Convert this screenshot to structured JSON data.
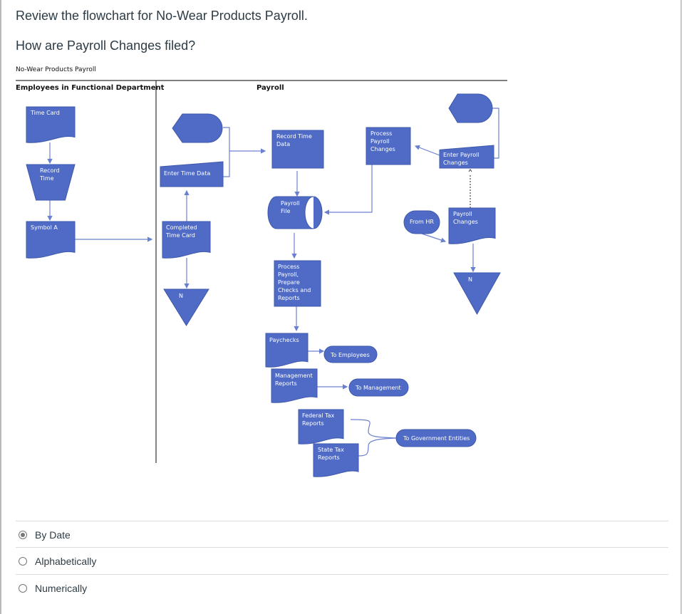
{
  "question": {
    "line1": "Review the flowchart for No-Wear Products Payroll.",
    "line2": "How are Payroll Changes filed?"
  },
  "flowchart": {
    "title": "No-Wear Products Payroll",
    "lanes": [
      "Employees in Functional Department",
      "Payroll"
    ],
    "shapes": {
      "time_card": [
        "Time Card"
      ],
      "record_time": [
        "Record",
        "Time"
      ],
      "symbol_a": [
        "Symbol A"
      ],
      "enter_time_data": [
        "Enter Time Data"
      ],
      "completed_time_card": [
        "Completed",
        "Time Card"
      ],
      "file_n_left": [
        "N"
      ],
      "record_time_data": [
        "Record Time",
        "Data"
      ],
      "payroll_file": [
        "Payroll",
        "File"
      ],
      "process_payroll": [
        "Process",
        "Payroll,",
        "Prepare",
        "Checks and",
        "Reports"
      ],
      "paychecks": [
        "Paychecks"
      ],
      "to_employees": [
        "To Employees"
      ],
      "management_reports": [
        "Management",
        "Reports"
      ],
      "to_management": [
        "To Management"
      ],
      "federal_tax": [
        "Federal Tax",
        "Reports"
      ],
      "state_tax": [
        "State Tax",
        "Reports"
      ],
      "to_government": [
        "To Government Entities"
      ],
      "process_payroll_changes": [
        "Process",
        "Payroll",
        "Changes"
      ],
      "enter_payroll_changes": [
        "Enter Payroll",
        "Changes"
      ],
      "from_hr": [
        "From HR"
      ],
      "payroll_changes": [
        "Payroll",
        "Changes"
      ],
      "file_n_right": [
        "N"
      ]
    },
    "colors": {
      "shape_fill": "#4f6bc6",
      "connector": "#6b80d0"
    }
  },
  "options": [
    {
      "label": "By Date",
      "selected": true
    },
    {
      "label": "Alphabetically",
      "selected": false
    },
    {
      "label": "Numerically",
      "selected": false
    }
  ]
}
